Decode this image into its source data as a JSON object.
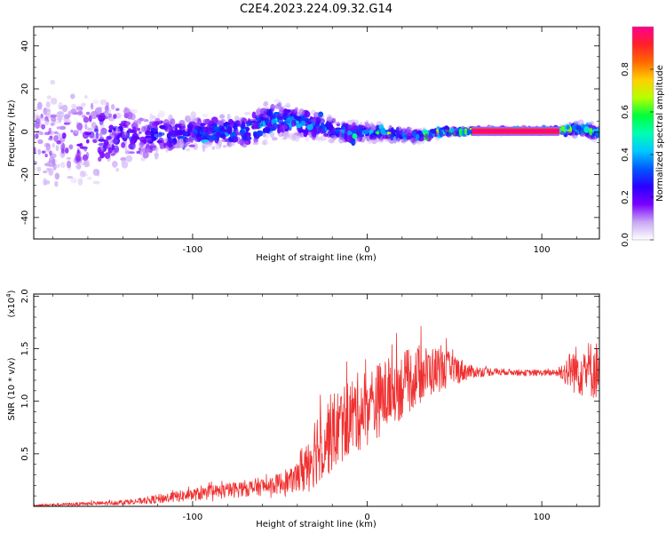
{
  "title": "C2E4.2023.224.09.32.G14",
  "chart_data": [
    {
      "type": "heatmap",
      "xlabel": "Height of straight line (km)",
      "ylabel": "Frequency (Hz)",
      "xlim": [
        -191,
        133
      ],
      "ylim": [
        -50,
        49
      ],
      "xticks": [
        -100,
        0,
        100
      ],
      "yticks": [
        -40,
        -20,
        0,
        20,
        40
      ],
      "grid": false,
      "colorbar": {
        "label": "Normalized spectral amplitude",
        "range": [
          0.0,
          1.0
        ],
        "ticks": [
          "0.0",
          "0.2",
          "0.4",
          "0.6",
          "0.8"
        ],
        "colors": [
          "#ffffff",
          "#c9a8f5",
          "#7a00ff",
          "#2a00ff",
          "#0058ff",
          "#00c8ff",
          "#00ffb0",
          "#00ff3a",
          "#b8ff00",
          "#ffd000",
          "#ff6a00",
          "#ff1f2a",
          "#ff0090"
        ]
      },
      "tone": {
        "x_start": 60,
        "x_end": 110,
        "freq": 0.5,
        "band": [
          -1.0,
          1.5
        ],
        "amplitude": 1.0
      },
      "profile": {
        "x": [
          -191,
          -170,
          -150,
          -130,
          -110,
          -90,
          -70,
          -55,
          -45,
          -30,
          -15,
          0,
          15,
          30,
          45,
          55,
          60,
          110,
          118,
          125,
          133
        ],
        "center": [
          -3,
          -3,
          -2,
          -2,
          -1,
          0,
          0,
          5,
          5,
          3,
          0,
          0,
          -1,
          -2,
          0,
          0,
          0.5,
          0.5,
          1,
          1,
          -1
        ],
        "spread": [
          40,
          35,
          25,
          15,
          10,
          9,
          9,
          11,
          9,
          8,
          6,
          5,
          4,
          3,
          2,
          1.5,
          1.2,
          1.2,
          3,
          4,
          4
        ],
        "peak": [
          0.15,
          0.18,
          0.25,
          0.3,
          0.35,
          0.4,
          0.42,
          0.45,
          0.48,
          0.42,
          0.42,
          0.45,
          0.45,
          0.48,
          0.55,
          0.7,
          1.0,
          1.0,
          0.65,
          0.7,
          0.6
        ]
      }
    },
    {
      "type": "line",
      "xlabel": "Height of straight line (km)",
      "ylabel": "SNR (10 * v/v)",
      "y_multiplier": "(x10",
      "y_multiplier_exp": "4",
      "y_multiplier_close": ")",
      "xlim": [
        -191,
        133
      ],
      "ylim": [
        0,
        2.02
      ],
      "xticks": [
        -100,
        0,
        100
      ],
      "yticks": [
        0.5,
        1.0,
        1.5,
        2.0
      ],
      "grid": false,
      "color": "#f03030",
      "x": [
        -191,
        -170,
        -150,
        -130,
        -115,
        -100,
        -85,
        -70,
        -55,
        -42,
        -35,
        -28,
        -20,
        -10,
        0,
        10,
        20,
        30,
        40,
        50,
        60,
        70,
        80,
        90,
        100,
        108,
        112,
        118,
        125,
        133
      ],
      "mean": [
        0.01,
        0.02,
        0.03,
        0.05,
        0.08,
        0.11,
        0.14,
        0.17,
        0.2,
        0.25,
        0.4,
        0.6,
        0.7,
        0.85,
        0.95,
        1.05,
        1.15,
        1.25,
        1.3,
        1.3,
        1.28,
        1.28,
        1.28,
        1.27,
        1.27,
        1.27,
        1.28,
        1.3,
        1.3,
        1.3
      ],
      "noise": [
        0.01,
        0.015,
        0.02,
        0.03,
        0.05,
        0.06,
        0.07,
        0.08,
        0.09,
        0.12,
        0.3,
        0.38,
        0.38,
        0.38,
        0.38,
        0.35,
        0.32,
        0.28,
        0.22,
        0.15,
        0.06,
        0.04,
        0.03,
        0.03,
        0.03,
        0.03,
        0.1,
        0.22,
        0.28,
        0.28
      ]
    }
  ]
}
